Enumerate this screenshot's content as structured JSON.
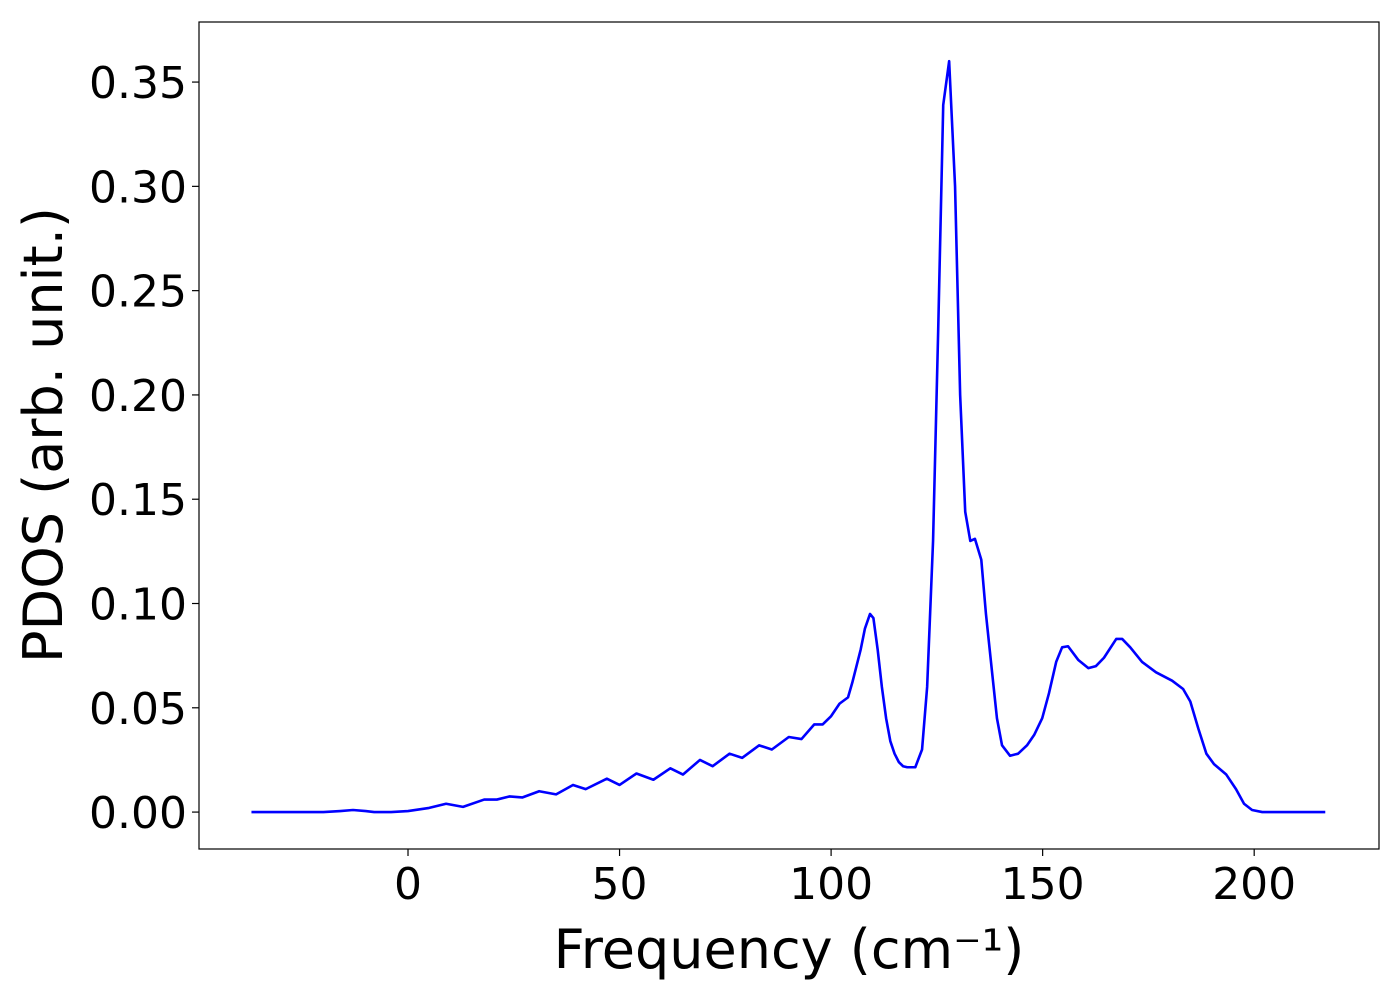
{
  "chart_data": {
    "type": "line",
    "xlabel": "Frequency (cm⁻¹)",
    "ylabel": "PDOS (arb. unit.)",
    "xlim": [
      -49.4,
      229.5
    ],
    "ylim": [
      -0.0177,
      0.3788
    ],
    "xticks": [
      0,
      50,
      100,
      150,
      200
    ],
    "yticks": [
      {
        "value": 0,
        "label": "0.00"
      },
      0.05,
      {
        "value": 0.1,
        "label": "0.10"
      },
      0.15,
      {
        "value": 0.2,
        "label": "0.20"
      },
      0.25,
      {
        "value": 0.3,
        "label": "0.30"
      },
      0.35
    ],
    "grid": false,
    "series": [
      {
        "color": "#0000ff",
        "x": [
          -37,
          -30,
          -20,
          -16,
          -13,
          -10,
          -8,
          -4,
          0,
          5,
          9,
          13,
          18,
          21,
          24,
          27,
          31,
          35,
          39,
          42,
          47,
          50,
          54,
          58,
          62,
          65,
          69,
          72,
          76,
          79,
          83,
          86,
          90,
          93,
          96,
          98,
          100,
          102,
          104,
          105,
          107,
          108,
          109.2,
          110,
          111,
          112,
          113,
          114,
          115,
          116,
          117,
          118,
          119.9,
          121.5,
          122.7,
          124.1,
          125.3,
          126.5,
          127.9,
          129.3,
          130.5,
          131.7,
          132.9,
          134,
          135.5,
          136.6,
          138.1,
          139.2,
          140.4,
          142.3,
          144.2,
          146.3,
          148,
          149.9,
          151.5,
          153.2,
          154.6,
          156,
          158.4,
          160.8,
          162.6,
          164.5,
          167.4,
          168.8,
          170.7,
          173.5,
          176.8,
          180.6,
          183.2,
          184.9,
          186.8,
          188.7,
          190.5,
          193.4,
          195.7,
          197.6,
          199.5,
          201.9,
          210,
          216.8
        ],
        "values": [
          0,
          0,
          0,
          0.0005,
          0.001,
          0.0005,
          0,
          0,
          0.0005,
          0.002,
          0.004,
          0.0025,
          0.006,
          0.006,
          0.0075,
          0.007,
          0.01,
          0.0085,
          0.013,
          0.011,
          0.016,
          0.013,
          0.0185,
          0.0155,
          0.021,
          0.018,
          0.025,
          0.022,
          0.028,
          0.026,
          0.032,
          0.03,
          0.036,
          0.035,
          0.042,
          0.042,
          0.046,
          0.052,
          0.055,
          0.062,
          0.078,
          0.088,
          0.095,
          0.093,
          0.078,
          0.06,
          0.045,
          0.034,
          0.028,
          0.024,
          0.022,
          0.0215,
          0.0215,
          0.03,
          0.06,
          0.13,
          0.23,
          0.339,
          0.36,
          0.3,
          0.2,
          0.144,
          0.13,
          0.131,
          0.121,
          0.095,
          0.066,
          0.045,
          0.032,
          0.027,
          0.028,
          0.032,
          0.037,
          0.045,
          0.057,
          0.072,
          0.079,
          0.0795,
          0.073,
          0.069,
          0.07,
          0.074,
          0.083,
          0.083,
          0.079,
          0.072,
          0.067,
          0.063,
          0.059,
          0.053,
          0.04,
          0.028,
          0.023,
          0.018,
          0.011,
          0.004,
          0.001,
          0,
          0,
          0
        ]
      }
    ]
  }
}
